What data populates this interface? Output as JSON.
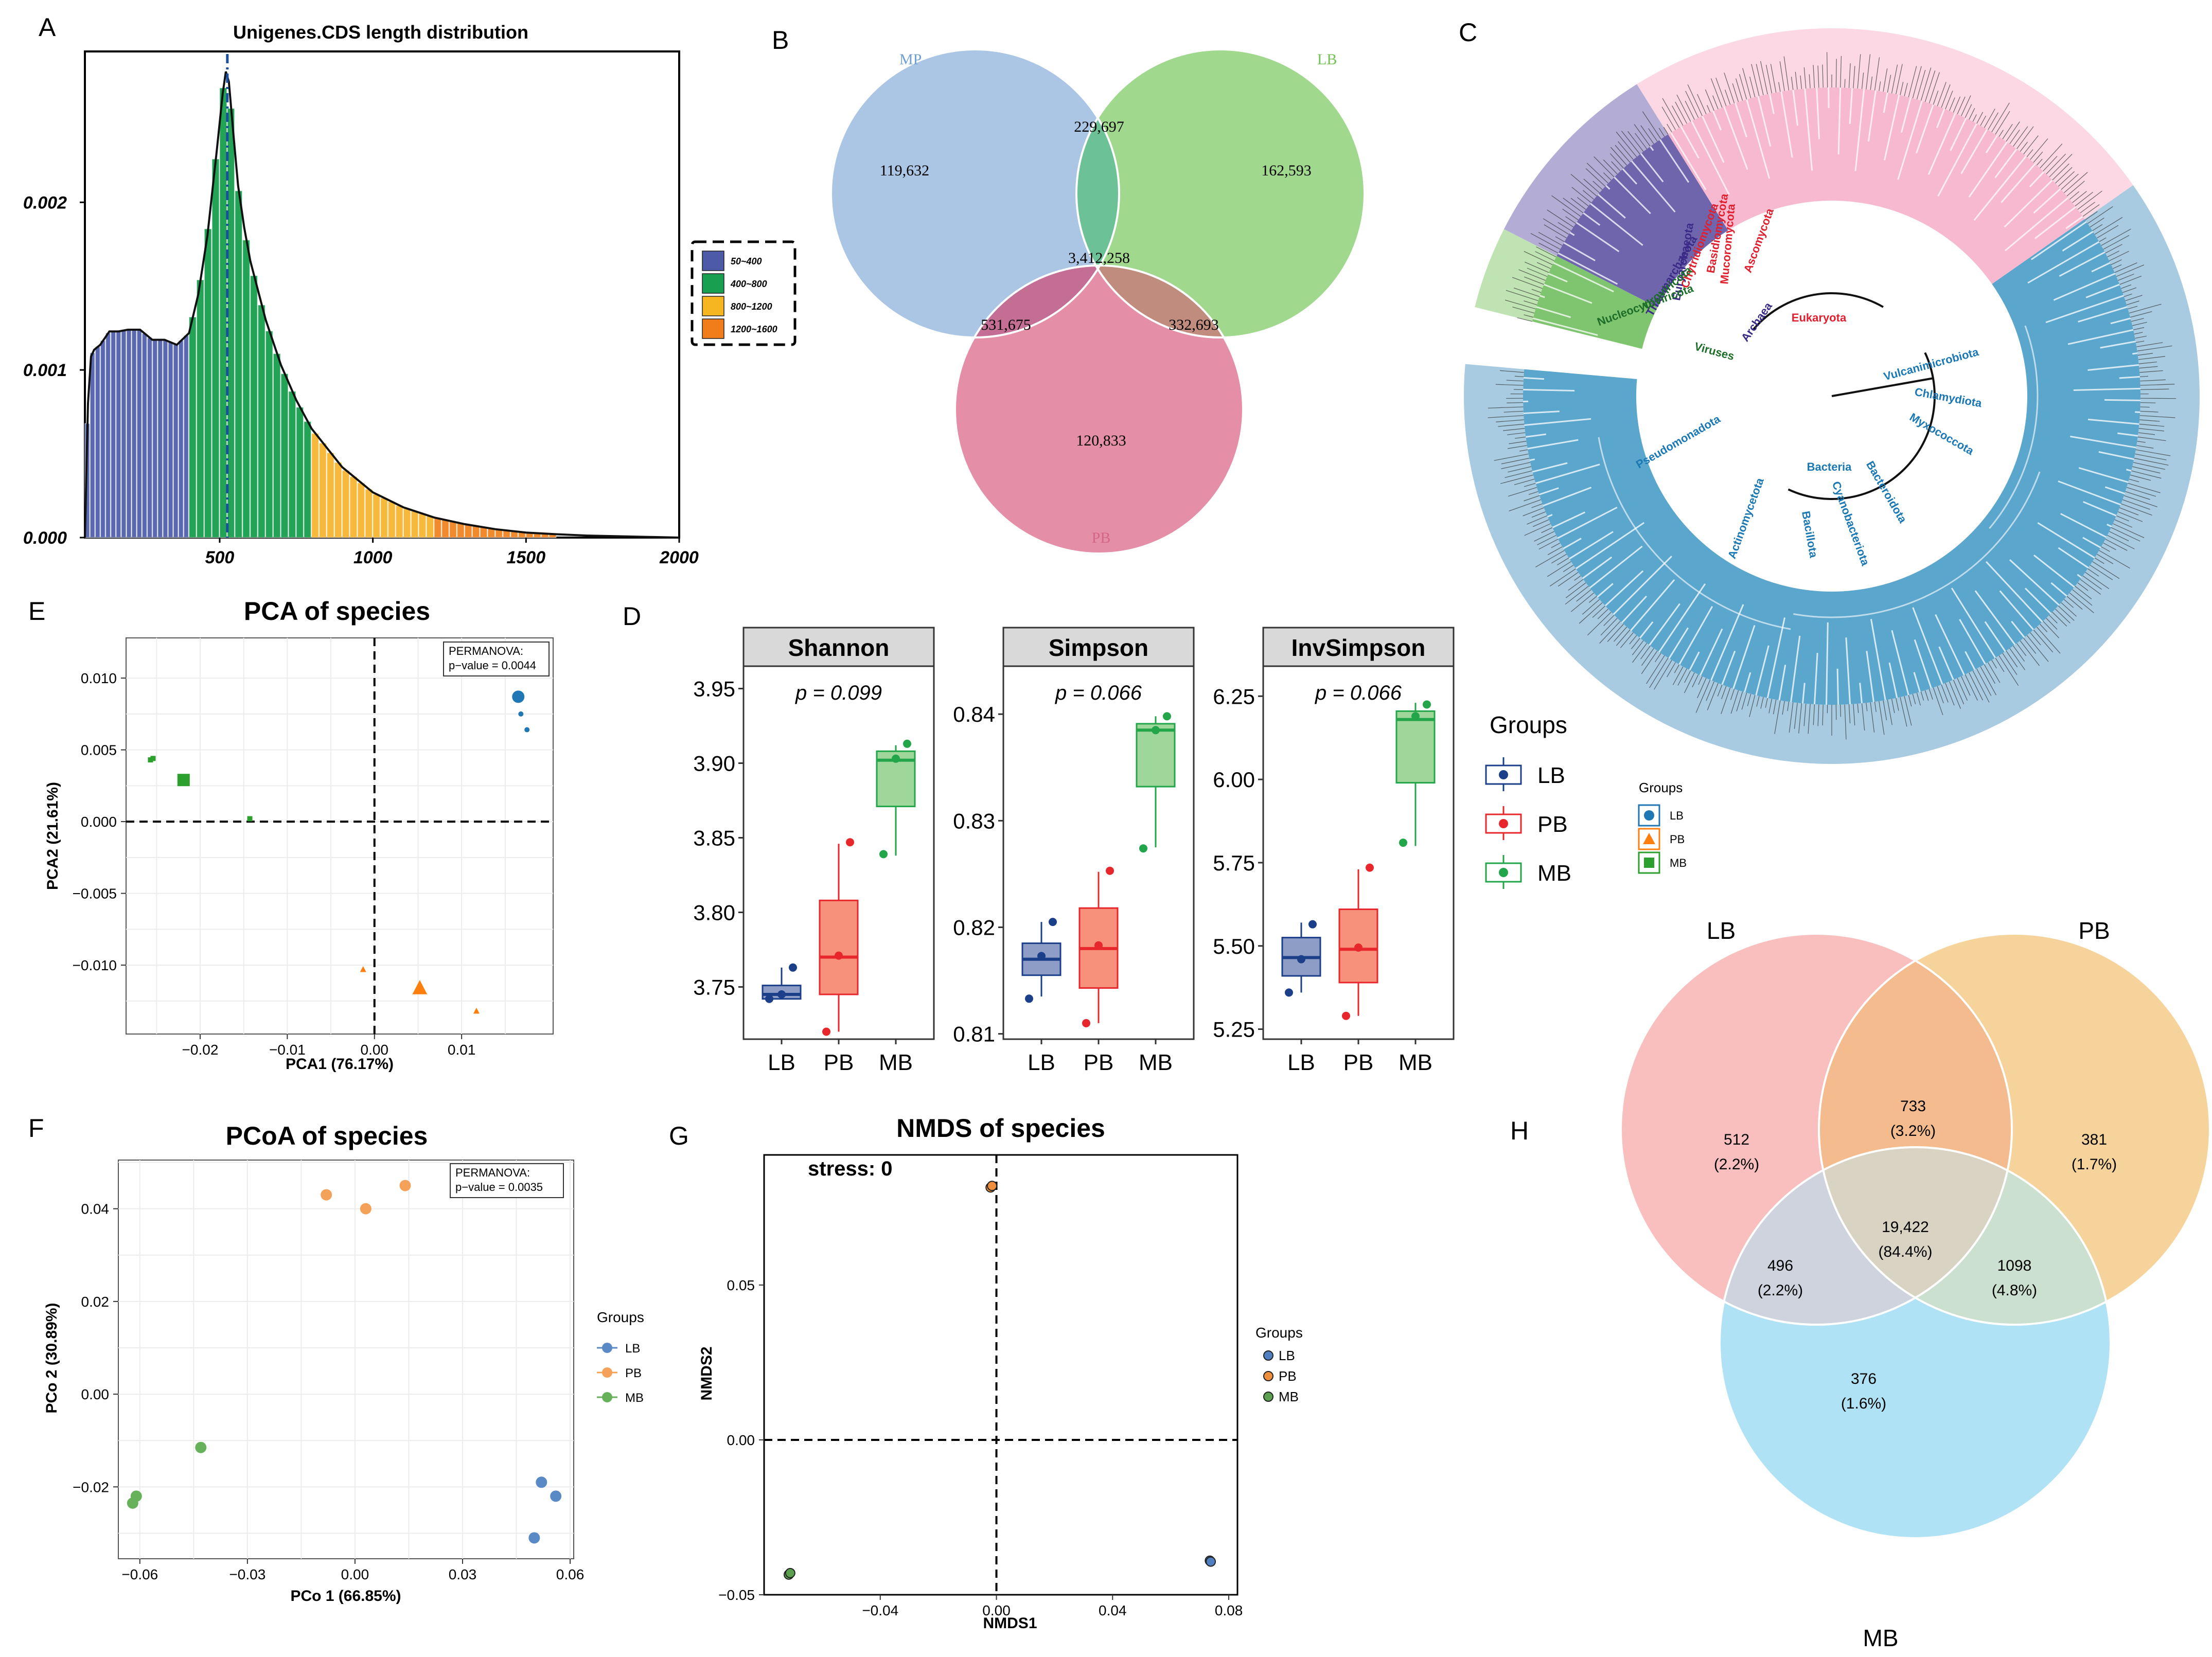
{
  "chart_data": [
    {
      "panel": "A",
      "type": "area",
      "title": "Unigenes.CDS length distribution",
      "xlabel": "",
      "ylabel": "",
      "xlim": [
        60,
        2000
      ],
      "ylim": [
        0,
        0.0029
      ],
      "x_ticks": [
        "500",
        "1000",
        "1500",
        "2000"
      ],
      "x_tick_values": [
        500,
        1000,
        1500,
        2000
      ],
      "y_ticks": [
        "0.000",
        "0.001",
        "0.002"
      ],
      "y_tick_values": [
        0,
        0.001,
        0.002
      ],
      "mean_line_x": 525,
      "legend": [
        {
          "label": "50~400",
          "color": "#4d5aa8"
        },
        {
          "label": "400~800",
          "color": "#18a050"
        },
        {
          "label": "800~1200",
          "color": "#f5b620"
        },
        {
          "label": "1200~1600",
          "color": "#f07d1a"
        }
      ],
      "bins": [
        {
          "range": [
            60,
            400
          ],
          "color": "#5a68b0"
        },
        {
          "range": [
            400,
            800
          ],
          "color": "#22a356"
        },
        {
          "range": [
            800,
            1200
          ],
          "color": "#f6b93b"
        },
        {
          "range": [
            1200,
            1600
          ],
          "color": "#f08a2c"
        }
      ],
      "density_x": [
        60,
        65,
        70,
        80,
        90,
        110,
        140,
        170,
        200,
        240,
        280,
        320,
        360,
        400,
        430,
        460,
        490,
        510,
        520,
        530,
        545,
        560,
        580,
        600,
        650,
        700,
        750,
        800,
        900,
        1000,
        1100,
        1200,
        1300,
        1400,
        1500,
        1600,
        1700,
        1800,
        1900,
        2000
      ],
      "density_y": [
        0,
        0.0004,
        0.0008,
        0.00108,
        0.00112,
        0.00115,
        0.00123,
        0.00123,
        0.00124,
        0.00124,
        0.00118,
        0.00118,
        0.00115,
        0.00122,
        0.00145,
        0.0018,
        0.0023,
        0.00265,
        0.00278,
        0.00272,
        0.0024,
        0.0021,
        0.00185,
        0.00165,
        0.0013,
        0.00103,
        0.00082,
        0.00065,
        0.00042,
        0.00027,
        0.00018,
        0.00012,
        8e-05,
        5e-05,
        3e-05,
        2e-05,
        1.2e-05,
        8e-06,
        4e-06,
        0
      ]
    },
    {
      "panel": "B",
      "type": "venn",
      "sets": [
        {
          "name": "MP",
          "color": "#9bbcdf"
        },
        {
          "name": "LB",
          "color": "#8fd17a"
        },
        {
          "name": "PB",
          "color": "#e4829e"
        }
      ],
      "regions": {
        "MP_only": "119,632",
        "LB_only": "162,593",
        "PB_only": "120,833",
        "MP_LB": "229,697",
        "MP_PB": "531,675",
        "LB_PB": "332,693",
        "all": "3,412,258"
      }
    },
    {
      "panel": "C",
      "type": "tree",
      "labels": [
        {
          "text": "Eukaryota",
          "color": "#e0202e"
        },
        {
          "text": "Ascomycota",
          "color": "#e0202e"
        },
        {
          "text": "Basidiomycota",
          "color": "#e0202e"
        },
        {
          "text": "Mucoromycota",
          "color": "#e0202e"
        },
        {
          "text": "Chytridiomycota",
          "color": "#e0202e"
        },
        {
          "text": "Archaea",
          "color": "#3b2a86"
        },
        {
          "text": "Euryarchaeota",
          "color": "#3b2a86"
        },
        {
          "text": "Thaumarchaeota",
          "color": "#3b2a86"
        },
        {
          "text": "Viruses",
          "color": "#1d6e28"
        },
        {
          "text": "Uroviricota",
          "color": "#1d6e28"
        },
        {
          "text": "Nucleocytoviricota",
          "color": "#1d6e28"
        },
        {
          "text": "Bacteria",
          "color": "#1a78b4"
        },
        {
          "text": "Vulcanimicrobiota",
          "color": "#1a78b4"
        },
        {
          "text": "Chlamydiota",
          "color": "#1a78b4"
        },
        {
          "text": "Myxococcota",
          "color": "#1a78b4"
        },
        {
          "text": "Pseudomonadota",
          "color": "#1a78b4"
        },
        {
          "text": "Actinomycetota",
          "color": "#1a78b4"
        },
        {
          "text": "Bacillota",
          "color": "#1a78b4"
        },
        {
          "text": "Cyanobacteriota",
          "color": "#1a78b4"
        },
        {
          "text": "Bacteroidota",
          "color": "#1a78b4"
        }
      ],
      "legend_title": "Groups",
      "legend": [
        {
          "label": "LB",
          "color": "#1f77b4",
          "shape": "circle"
        },
        {
          "label": "PB",
          "color": "#ff7f0e",
          "shape": "triangle"
        },
        {
          "label": "MB",
          "color": "#2ca02c",
          "shape": "square"
        }
      ]
    },
    {
      "panel": "E",
      "type": "scatter",
      "title": "PCA of species",
      "xlabel": "PCA1 (76.17%)",
      "ylabel": "PCA2 (21.61%)",
      "xlim": [
        -0.0285,
        0.0205
      ],
      "ylim": [
        -0.0148,
        0.0128
      ],
      "x_ticks": [
        -0.02,
        -0.01,
        0.0,
        0.01
      ],
      "x_tick_labels": [
        "−0.02",
        "−0.01",
        "0.00",
        "0.01"
      ],
      "y_ticks": [
        -0.01,
        -0.005,
        0.0,
        0.005,
        0.01
      ],
      "y_tick_labels": [
        "−0.010",
        "−0.005",
        "0.000",
        "0.005",
        "0.010"
      ],
      "annotation_title": "PERMANOVA:",
      "annotation_label": "p−value = 0.0044",
      "points": [
        {
          "group": "LB",
          "x": 0.0165,
          "y": 0.0087,
          "size": "large"
        },
        {
          "group": "LB",
          "x": 0.0168,
          "y": 0.0075,
          "size": "small"
        },
        {
          "group": "LB",
          "x": 0.0175,
          "y": 0.0064,
          "size": "small"
        },
        {
          "group": "PB",
          "x": 0.0052,
          "y": -0.0116,
          "size": "large"
        },
        {
          "group": "PB",
          "x": -0.0013,
          "y": -0.0103,
          "size": "small"
        },
        {
          "group": "PB",
          "x": 0.0117,
          "y": -0.0132,
          "size": "small"
        },
        {
          "group": "MB",
          "x": -0.0219,
          "y": 0.0029,
          "size": "large"
        },
        {
          "group": "MB",
          "x": -0.0257,
          "y": 0.0043,
          "size": "small"
        },
        {
          "group": "MB",
          "x": -0.0254,
          "y": 0.0044,
          "size": "small"
        },
        {
          "group": "MB",
          "x": -0.0143,
          "y": 0.0002,
          "size": "small"
        }
      ]
    },
    {
      "panel": "D",
      "type": "box",
      "legend_title": "Groups",
      "groups": [
        {
          "name": "LB",
          "color": "#1c3f8a",
          "fill": "#8e9dc6"
        },
        {
          "name": "PB",
          "color": "#e8272c",
          "fill": "#f7917b"
        },
        {
          "name": "MB",
          "color": "#23a64a",
          "fill": "#9fd69a"
        }
      ],
      "facets": [
        {
          "title": "Shannon",
          "pvalue": "p = 0.099",
          "ylim": [
            3.715,
            3.965
          ],
          "y_ticks": [
            3.75,
            3.8,
            3.85,
            3.9,
            3.95
          ],
          "y_tick_labels": [
            "3.75",
            "3.80",
            "3.85",
            "3.90",
            "3.95"
          ],
          "boxes": [
            {
              "group": "LB",
              "q1": 3.742,
              "median": 3.745,
              "q3": 3.751,
              "min": 3.742,
              "max": 3.763,
              "points": [
                3.742,
                3.745,
                3.763
              ]
            },
            {
              "group": "PB",
              "q1": 3.745,
              "median": 3.77,
              "q3": 3.808,
              "min": 3.72,
              "max": 3.846,
              "points": [
                3.72,
                3.771,
                3.847
              ]
            },
            {
              "group": "MB",
              "q1": 3.871,
              "median": 3.902,
              "q3": 3.908,
              "min": 3.838,
              "max": 3.912,
              "points": [
                3.839,
                3.903,
                3.913
              ]
            }
          ]
        },
        {
          "title": "Simpson",
          "pvalue": "p = 0.066",
          "ylim": [
            0.8095,
            0.8445
          ],
          "y_ticks": [
            0.81,
            0.82,
            0.83,
            0.84
          ],
          "y_tick_labels": [
            "0.81",
            "0.82",
            "0.83",
            "0.84"
          ],
          "boxes": [
            {
              "group": "LB",
              "q1": 0.8155,
              "median": 0.817,
              "q3": 0.8185,
              "min": 0.8135,
              "max": 0.8205,
              "points": [
                0.8133,
                0.8173,
                0.8205
              ]
            },
            {
              "group": "PB",
              "q1": 0.8143,
              "median": 0.818,
              "q3": 0.8218,
              "min": 0.811,
              "max": 0.8252,
              "points": [
                0.811,
                0.8183,
                0.8253
              ]
            },
            {
              "group": "MB",
              "q1": 0.8332,
              "median": 0.8385,
              "q3": 0.8391,
              "min": 0.8275,
              "max": 0.8398,
              "points": [
                0.8274,
                0.8385,
                0.8398
              ]
            }
          ]
        },
        {
          "title": "InvSimpson",
          "pvalue": "p = 0.066",
          "ylim": [
            5.22,
            6.34
          ],
          "y_ticks": [
            5.25,
            5.5,
            5.75,
            6.0,
            6.25
          ],
          "y_tick_labels": [
            "5.25",
            "5.50",
            "5.75",
            "6.00",
            "6.25"
          ],
          "boxes": [
            {
              "group": "LB",
              "q1": 5.41,
              "median": 5.465,
              "q3": 5.525,
              "min": 5.36,
              "max": 5.57,
              "points": [
                5.36,
                5.46,
                5.565
              ]
            },
            {
              "group": "PB",
              "q1": 5.39,
              "median": 5.49,
              "q3": 5.61,
              "min": 5.29,
              "max": 5.73,
              "points": [
                5.29,
                5.495,
                5.735
              ]
            },
            {
              "group": "MB",
              "q1": 5.99,
              "median": 6.18,
              "q3": 6.205,
              "min": 5.8,
              "max": 6.23,
              "points": [
                5.81,
                6.19,
                6.225
              ]
            }
          ]
        }
      ]
    },
    {
      "panel": "F",
      "type": "scatter",
      "title": "PCoA of species",
      "xlabel": "PCo 1 (66.85%)",
      "ylabel": "PCo 2 (30.89%)",
      "xlim": [
        -0.066,
        0.061
      ],
      "ylim": [
        -0.0355,
        0.0505
      ],
      "x_ticks": [
        -0.06,
        -0.03,
        0.0,
        0.03,
        0.06
      ],
      "x_tick_labels": [
        "−0.06",
        "−0.03",
        "0.00",
        "0.03",
        "0.06"
      ],
      "y_ticks": [
        -0.02,
        0.0,
        0.02,
        0.04
      ],
      "y_tick_labels": [
        "−0.02",
        "0.00",
        "0.02",
        "0.04"
      ],
      "annotation_title": "PERMANOVA:",
      "annotation_label": "p−value = 0.0035",
      "legend_title": "Groups",
      "legend": [
        {
          "label": "LB",
          "color": "#5a8ac6"
        },
        {
          "label": "PB",
          "color": "#f4a259"
        },
        {
          "label": "MB",
          "color": "#66b15a"
        }
      ],
      "points": [
        {
          "group": "LB",
          "x": 0.052,
          "y": -0.019
        },
        {
          "group": "LB",
          "x": 0.056,
          "y": -0.022
        },
        {
          "group": "LB",
          "x": 0.05,
          "y": -0.031
        },
        {
          "group": "PB",
          "x": -0.008,
          "y": 0.043
        },
        {
          "group": "PB",
          "x": 0.014,
          "y": 0.045
        },
        {
          "group": "PB",
          "x": 0.003,
          "y": 0.04
        },
        {
          "group": "MB",
          "x": -0.043,
          "y": -0.0115
        },
        {
          "group": "MB",
          "x": -0.061,
          "y": -0.022
        },
        {
          "group": "MB",
          "x": -0.062,
          "y": -0.0235
        }
      ]
    },
    {
      "panel": "G",
      "type": "scatter",
      "title": "NMDS of species",
      "xlabel": "NMDS1",
      "ylabel": "NMDS2",
      "annotation": "stress: 0",
      "xlim": [
        -0.08,
        0.083
      ],
      "ylim": [
        -0.05,
        0.092
      ],
      "x_ticks": [
        -0.04,
        0.0,
        0.04,
        0.08
      ],
      "x_tick_labels": [
        "−0.04",
        "0.00",
        "0.04",
        "0.08"
      ],
      "y_ticks": [
        -0.05,
        0.0,
        0.05
      ],
      "y_tick_labels": [
        "−0.05",
        "0.00",
        "0.05"
      ],
      "legend_title": "Groups",
      "legend": [
        {
          "label": "LB",
          "color": "#4f7fbf"
        },
        {
          "label": "PB",
          "color": "#ef8f3d"
        },
        {
          "label": "MB",
          "color": "#5aa04f"
        }
      ],
      "points": [
        {
          "group": "LB",
          "x": 0.0735,
          "y": -0.039
        },
        {
          "group": "LB",
          "x": 0.0738,
          "y": -0.0393
        },
        {
          "group": "PB",
          "x": -0.002,
          "y": 0.0815
        },
        {
          "group": "PB",
          "x": -0.0015,
          "y": 0.082
        },
        {
          "group": "MB",
          "x": -0.0715,
          "y": -0.0435
        },
        {
          "group": "MB",
          "x": -0.071,
          "y": -0.043
        }
      ]
    },
    {
      "panel": "H",
      "type": "venn",
      "sets": [
        {
          "name": "LB",
          "color": "#f8b4b4"
        },
        {
          "name": "PB",
          "color": "#f5cb8a"
        },
        {
          "name": "MB",
          "color": "#a6dff3"
        }
      ],
      "regions": {
        "LB_only": {
          "count": "512",
          "pct": "(2.2%)"
        },
        "PB_only": {
          "count": "381",
          "pct": "(1.7%)"
        },
        "MB_only": {
          "count": "376",
          "pct": "(1.6%)"
        },
        "LB_PB": {
          "count": "733",
          "pct": "(3.2%)"
        },
        "LB_MB": {
          "count": "496",
          "pct": "(2.2%)"
        },
        "PB_MB": {
          "count": "1098",
          "pct": "(4.8%)"
        },
        "all": {
          "count": "19,422",
          "pct": "(84.4%)"
        }
      }
    }
  ],
  "panel_letters": {
    "A": "A",
    "B": "B",
    "C": "C",
    "D": "D",
    "E": "E",
    "F": "F",
    "G": "G",
    "H": "H"
  }
}
